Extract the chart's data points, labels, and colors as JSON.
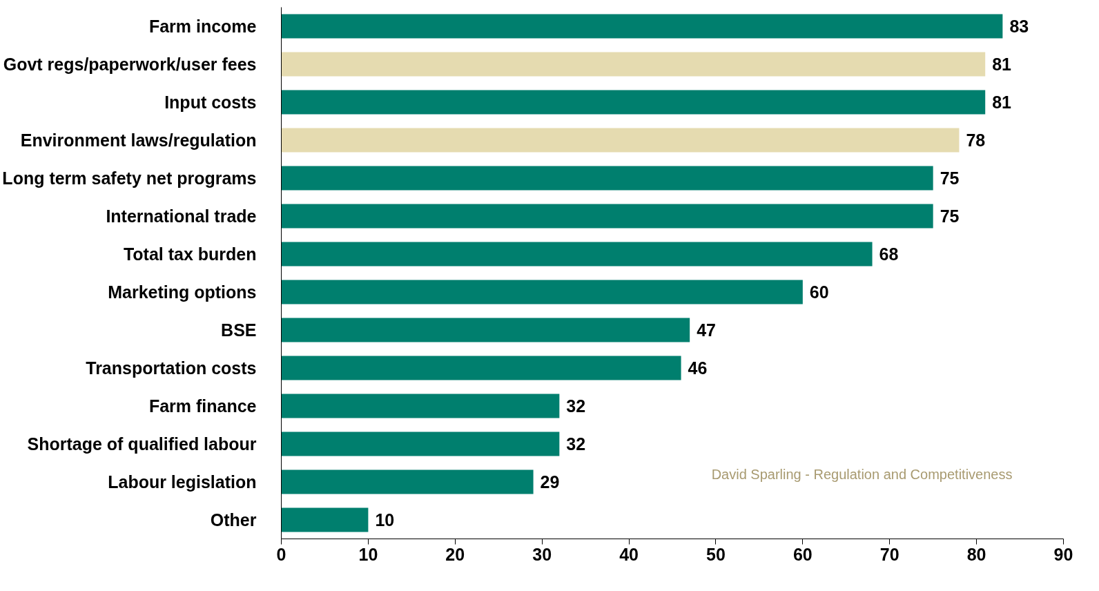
{
  "chart_data": {
    "type": "bar",
    "orientation": "horizontal",
    "categories": [
      "Farm income",
      "Govt regs/paperwork/user fees",
      "Input costs",
      "Environment laws/regulation",
      "Long term safety net programs",
      "International trade",
      "Total tax burden",
      "Marketing options",
      "BSE",
      "Transportation costs",
      "Farm finance",
      "Shortage of qualified labour",
      "Labour legislation",
      "Other"
    ],
    "values": [
      83,
      81,
      81,
      78,
      75,
      75,
      68,
      60,
      47,
      46,
      32,
      32,
      29,
      10
    ],
    "colors": [
      "#007f6e",
      "#e5dbb0",
      "#007f6e",
      "#e5dbb0",
      "#007f6e",
      "#007f6e",
      "#007f6e",
      "#007f6e",
      "#007f6e",
      "#007f6e",
      "#007f6e",
      "#007f6e",
      "#007f6e",
      "#007f6e"
    ],
    "xlim": [
      0,
      90
    ],
    "xticks": [
      0,
      10,
      20,
      30,
      40,
      50,
      60,
      70,
      80,
      90
    ],
    "data_labels": true,
    "grid": false,
    "annotations": [
      "David Sparling - Regulation and Competitiveness"
    ]
  }
}
